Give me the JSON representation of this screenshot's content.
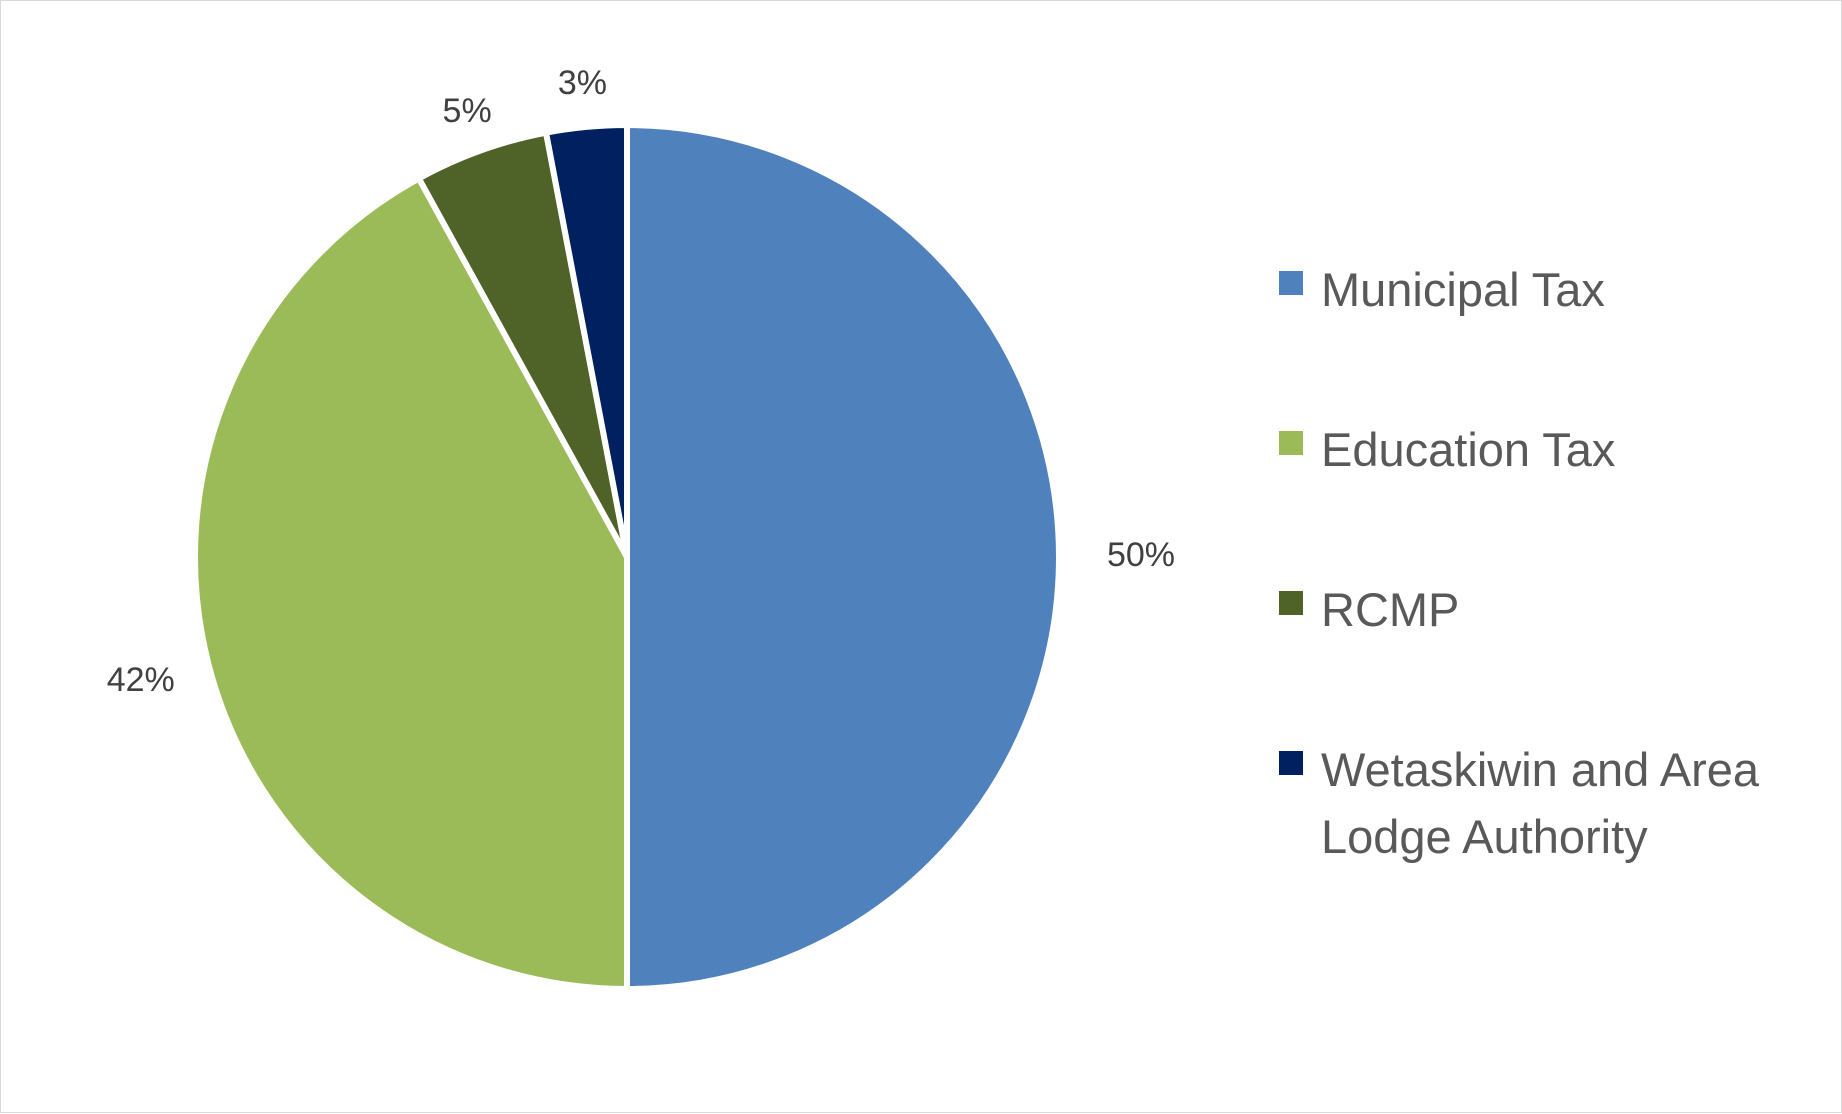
{
  "chart_data": {
    "type": "pie",
    "categories": [
      "Municipal Tax",
      "Education Tax",
      "RCMP",
      "Wetaskiwin and Area Lodge Authority"
    ],
    "values": [
      50,
      42,
      5,
      3
    ],
    "data_labels": [
      "50%",
      "42%",
      "5%",
      "3%"
    ],
    "colors": [
      "#4F81BD",
      "#9BBB59",
      "#4F6228",
      "#002060"
    ],
    "title": "",
    "legend_position": "right",
    "start_angle": "12 o'clock, clockwise"
  }
}
